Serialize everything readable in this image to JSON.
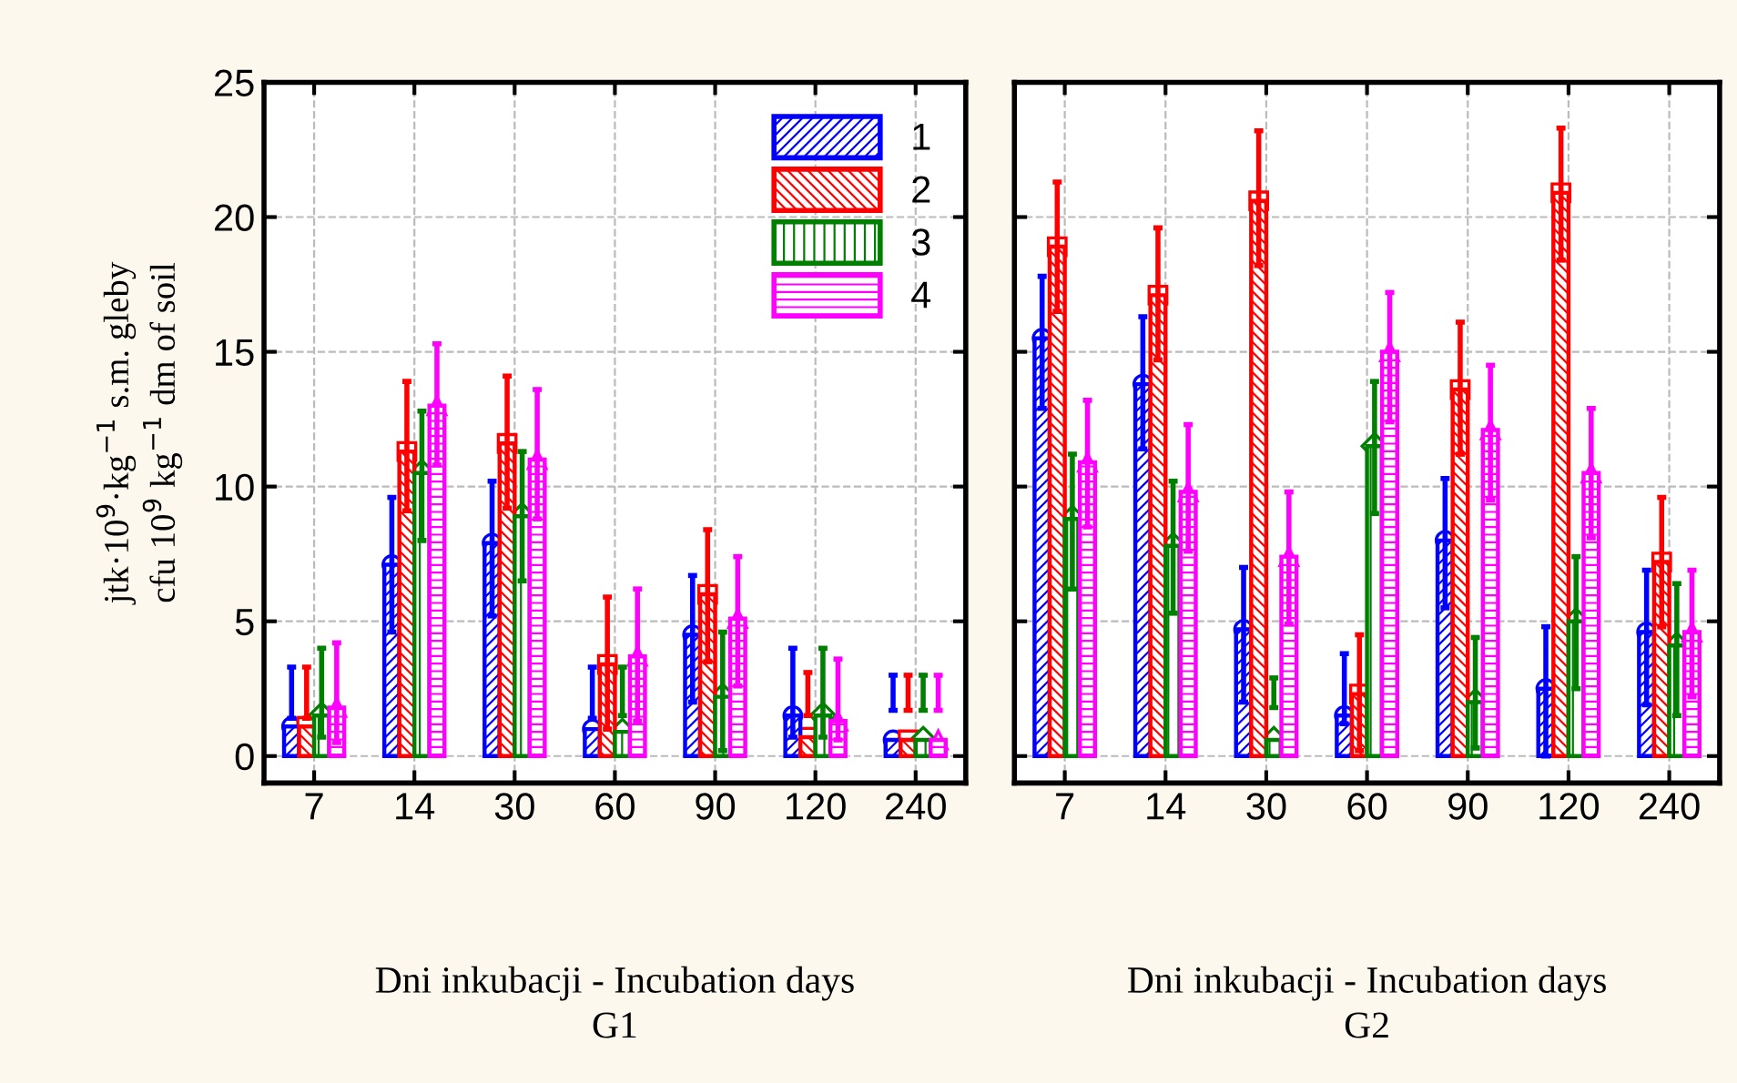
{
  "chart_data": [
    {
      "type": "bar",
      "xlabel": "Dni inkubacji - Incubation days\nG1",
      "ylabel": "jtk·10$^{9}$·kg$^{−1}$ s.m. gleby\ncfu 10$^{9}$ kg$^{−1}$ dm of soil",
      "categories": [
        "7",
        "14",
        "30",
        "60",
        "90",
        "120",
        "240"
      ],
      "ylim": [
        -1,
        25
      ],
      "yticks": [
        0,
        5,
        10,
        15,
        20,
        25
      ],
      "grid": true,
      "legend": "top right",
      "series": [
        {
          "name": "1",
          "color": "#0000ff",
          "marker": "circle",
          "values": [
            1.1,
            7.1,
            7.9,
            1.0,
            4.5,
            1.5,
            0.6
          ],
          "errors": [
            [
              1.4,
              3.3
            ],
            [
              4.6,
              9.6
            ],
            [
              5.2,
              10.2
            ],
            [
              1.4,
              3.3
            ],
            [
              2.0,
              6.7
            ],
            [
              0.7,
              4.0
            ],
            [
              1.7,
              3.0
            ]
          ]
        },
        {
          "name": "2",
          "color": "#ff0000",
          "marker": "square",
          "values": [
            1.1,
            11.3,
            11.6,
            3.4,
            6.0,
            0.7,
            0.6
          ],
          "errors": [
            [
              1.4,
              3.3
            ],
            [
              9.1,
              13.9
            ],
            [
              9.2,
              14.1
            ],
            [
              1.0,
              5.9
            ],
            [
              3.5,
              8.4
            ],
            [
              1.5,
              3.1
            ],
            [
              1.7,
              3.0
            ]
          ]
        },
        {
          "name": "3",
          "color": "#008000",
          "marker": "diamond",
          "values": [
            1.5,
            10.5,
            8.9,
            0.9,
            2.2,
            1.5,
            0.6
          ],
          "errors": [
            [
              0.7,
              4.0
            ],
            [
              8.0,
              12.8
            ],
            [
              6.5,
              11.3
            ],
            [
              1.5,
              3.3
            ],
            [
              0.2,
              4.6
            ],
            [
              0.7,
              4.0
            ],
            [
              1.7,
              3.0
            ]
          ]
        },
        {
          "name": "4",
          "color": "#ff00ff",
          "marker": "triangle",
          "values": [
            1.8,
            13.0,
            11.0,
            3.7,
            5.1,
            1.3,
            0.6
          ],
          "errors": [
            [
              0.5,
              4.2
            ],
            [
              10.8,
              15.3
            ],
            [
              8.8,
              13.6
            ],
            [
              1.3,
              6.2
            ],
            [
              2.6,
              7.4
            ],
            [
              0.6,
              3.6
            ],
            [
              1.7,
              3.0
            ]
          ]
        }
      ]
    },
    {
      "type": "bar",
      "xlabel": "Dni inkubacji - Incubation days\nG2",
      "categories": [
        "7",
        "14",
        "30",
        "60",
        "90",
        "120",
        "240"
      ],
      "ylim": [
        -1,
        25
      ],
      "yticks": [
        0,
        5,
        10,
        15,
        20,
        25
      ],
      "grid": true,
      "tick_labels": "x",
      "series": [
        {
          "color": "#0000ff",
          "marker": "circle",
          "values": [
            15.5,
            13.8,
            4.7,
            1.5,
            8.0,
            2.5,
            4.6
          ],
          "errors": [
            [
              12.9,
              17.8
            ],
            [
              11.4,
              16.3
            ],
            [
              2.0,
              7.0
            ],
            [
              1.2,
              3.8
            ],
            [
              5.5,
              10.3
            ],
            [
              0.0,
              4.8
            ],
            [
              1.9,
              6.9
            ]
          ]
        },
        {
          "color": "#ff0000",
          "marker": "square",
          "values": [
            18.9,
            17.1,
            20.6,
            2.3,
            13.6,
            20.9,
            7.2
          ],
          "errors": [
            [
              16.5,
              21.3
            ],
            [
              14.7,
              19.6
            ],
            [
              18.2,
              23.2
            ],
            [
              0.2,
              4.5
            ],
            [
              11.2,
              16.1
            ],
            [
              18.4,
              23.3
            ],
            [
              4.8,
              9.6
            ]
          ]
        },
        {
          "color": "#008000",
          "marker": "diamond",
          "values": [
            8.8,
            7.8,
            0.6,
            11.5,
            2.0,
            5.0,
            4.1
          ],
          "errors": [
            [
              6.2,
              11.2
            ],
            [
              5.3,
              10.2
            ],
            [
              1.8,
              2.9
            ],
            [
              9.0,
              13.9
            ],
            [
              0.3,
              4.4
            ],
            [
              2.5,
              7.4
            ],
            [
              1.5,
              6.4
            ]
          ]
        },
        {
          "color": "#ff00ff",
          "marker": "triangle",
          "values": [
            10.9,
            9.8,
            7.4,
            15.0,
            12.1,
            10.5,
            4.6
          ],
          "errors": [
            [
              8.5,
              13.2
            ],
            [
              7.6,
              12.3
            ],
            [
              4.9,
              9.8
            ],
            [
              12.4,
              17.2
            ],
            [
              9.5,
              14.5
            ],
            [
              8.1,
              12.9
            ],
            [
              2.2,
              6.9
            ]
          ]
        }
      ]
    }
  ]
}
